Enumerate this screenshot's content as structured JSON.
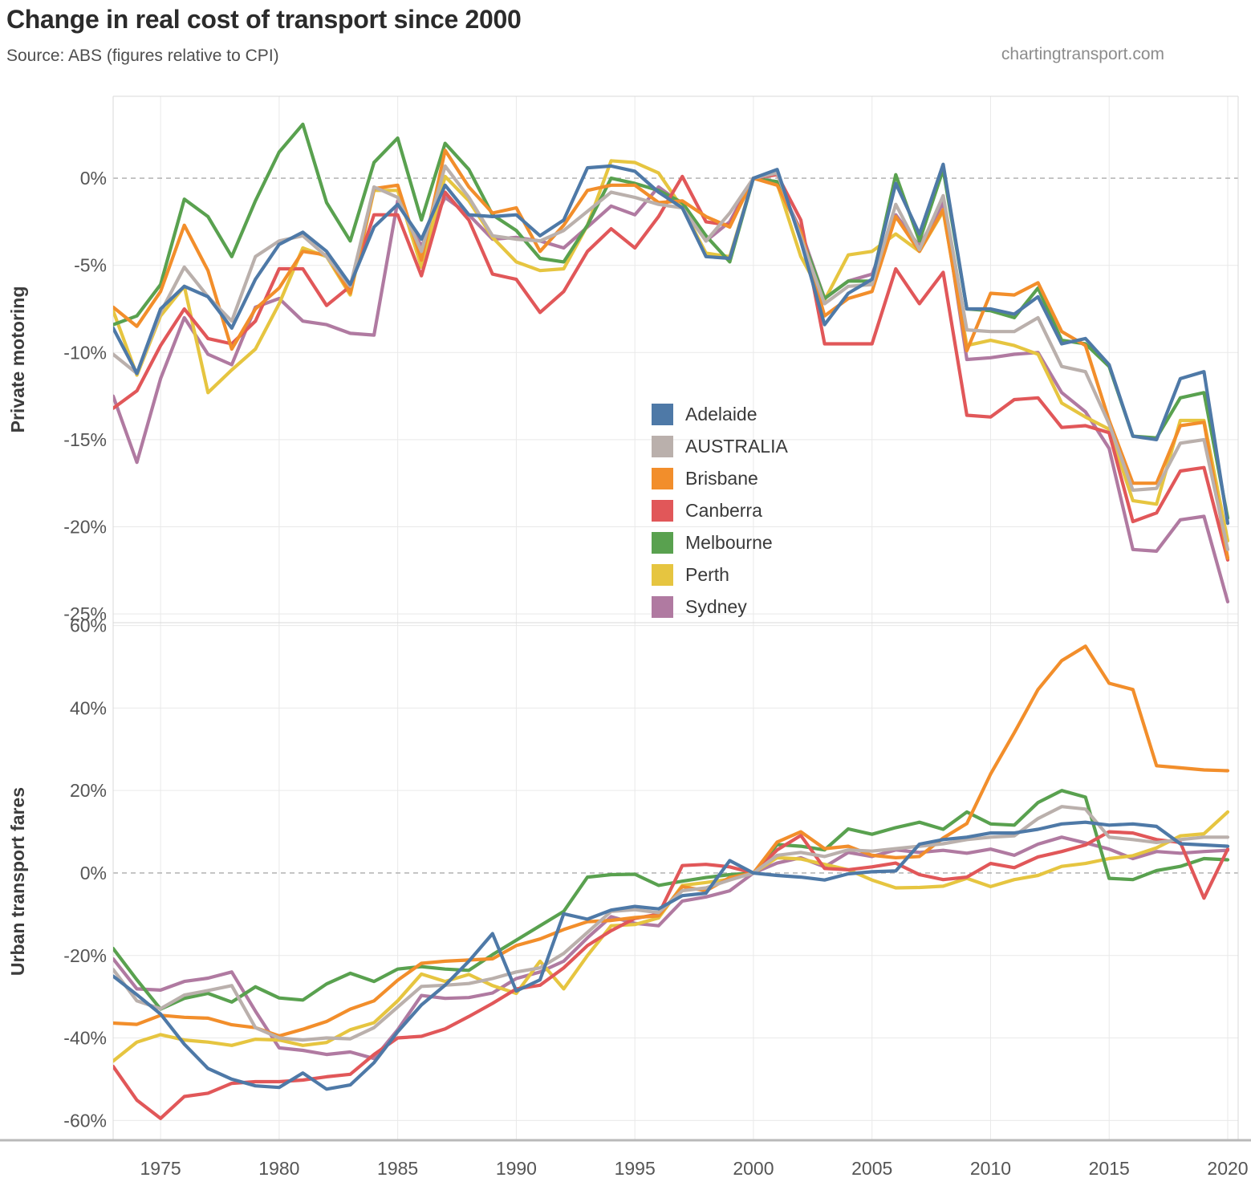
{
  "header": {
    "title": "Change in real cost of transport since 2000",
    "subtitle": "Source: ABS (figures relative to CPI)",
    "watermark": "chartingtransport.com"
  },
  "colors": {
    "adelaide": "#4e79a7",
    "australia": "#bab0ac",
    "brisbane": "#f28e2b",
    "canberra": "#e15759",
    "melbourne": "#59a14f",
    "perth": "#e6c540",
    "sydney": "#b07aa1"
  },
  "legend": {
    "items": [
      {
        "label": "Adelaide",
        "color_key": "adelaide"
      },
      {
        "label": "AUSTRALIA",
        "color_key": "australia"
      },
      {
        "label": "Brisbane",
        "color_key": "brisbane"
      },
      {
        "label": "Canberra",
        "color_key": "canberra"
      },
      {
        "label": "Melbourne",
        "color_key": "melbourne"
      },
      {
        "label": "Perth",
        "color_key": "perth"
      },
      {
        "label": "Sydney",
        "color_key": "sydney"
      }
    ]
  },
  "chart_data": [
    {
      "type": "line",
      "title": "Private motoring",
      "ylabel": "Private motoring",
      "grid": true,
      "legend_position": "inside-right",
      "x_years": [
        1973,
        1974,
        1975,
        1976,
        1977,
        1978,
        1979,
        1980,
        1981,
        1982,
        1983,
        1984,
        1985,
        1986,
        1987,
        1988,
        1989,
        1990,
        1991,
        1992,
        1993,
        1994,
        1995,
        1996,
        1997,
        1998,
        1999,
        2000,
        2001,
        2002,
        2003,
        2004,
        2005,
        2006,
        2007,
        2008,
        2009,
        2010,
        2011,
        2012,
        2013,
        2014,
        2015,
        2016,
        2017,
        2018,
        2019,
        2020
      ],
      "x_ticks": [
        1975,
        1980,
        1985,
        1990,
        1995,
        2000,
        2005,
        2010,
        2015,
        2020
      ],
      "y_ticks": [
        0,
        -5,
        -10,
        -15,
        -20,
        -25
      ],
      "y_tick_labels": [
        "0%",
        "-5%",
        "-10%",
        "-15%",
        "-20%",
        "-25%"
      ],
      "ylim": [
        -25.5,
        4.7
      ],
      "zero_line_dashed": true,
      "series": [
        {
          "name": "Adelaide",
          "color_key": "adelaide",
          "values": [
            -8.6,
            -11.2,
            -7.5,
            -6.2,
            -6.8,
            -8.6,
            -5.8,
            -3.8,
            -3.1,
            -4.2,
            -6.1,
            -2.8,
            -1.5,
            -3.5,
            -0.4,
            -2.1,
            -2.2,
            -2.1,
            -3.3,
            -2.4,
            0.6,
            0.7,
            0.4,
            -0.8,
            -1.7,
            -4.5,
            -4.6,
            0,
            0.5,
            -3.6,
            -8.4,
            -6.6,
            -5.8,
            -0.3,
            -3.2,
            0.8,
            -7.5,
            -7.5,
            -7.8,
            -6.8,
            -9.5,
            -9.2,
            -10.7,
            -14.8,
            -15.0,
            -11.5,
            -11.1,
            -19.8
          ]
        },
        {
          "name": "AUSTRALIA",
          "color_key": "australia",
          "values": [
            -10.1,
            -11.2,
            -7.7,
            -5.1,
            -6.8,
            -8.2,
            -4.5,
            -3.6,
            -3.3,
            -4.5,
            -6.2,
            -0.5,
            -1.1,
            -4.2,
            0.7,
            -1.1,
            -3.3,
            -3.5,
            -3.6,
            -3.0,
            -1.9,
            -0.8,
            -1.1,
            -1.5,
            -1.7,
            -3.6,
            -2.0,
            0,
            0.3,
            -3.4,
            -7.2,
            -6.2,
            -6.1,
            -1.5,
            -4.1,
            -1.0,
            -8.7,
            -8.8,
            -8.8,
            -8.0,
            -10.8,
            -11.1,
            -14.1,
            -17.9,
            -17.8,
            -15.2,
            -15.0,
            -21.3
          ]
        },
        {
          "name": "Brisbane",
          "color_key": "brisbane",
          "values": [
            -7.4,
            -8.5,
            -6.5,
            -2.7,
            -5.3,
            -9.8,
            -7.5,
            -6.3,
            -4.2,
            -4.4,
            -6.6,
            -0.6,
            -0.4,
            -4.7,
            1.6,
            -0.5,
            -2.0,
            -1.7,
            -4.2,
            -2.7,
            -0.7,
            -0.4,
            -0.4,
            -1.4,
            -1.3,
            -2.2,
            -2.8,
            0,
            -0.4,
            -3.1,
            -7.9,
            -6.9,
            -6.5,
            -2.2,
            -4.2,
            -1.8,
            -9.9,
            -6.6,
            -6.7,
            -6.0,
            -8.8,
            -9.6,
            -13.9,
            -17.5,
            -17.5,
            -14.2,
            -14.0,
            -21.8
          ]
        },
        {
          "name": "Canberra",
          "color_key": "canberra",
          "values": [
            -13.2,
            -12.2,
            -9.6,
            -7.5,
            -9.2,
            -9.5,
            -8.2,
            -5.2,
            -5.2,
            -7.3,
            -6.2,
            -2.1,
            -2.1,
            -5.6,
            -0.8,
            -2.4,
            -5.5,
            -5.8,
            -7.7,
            -6.5,
            -4.2,
            -2.9,
            -4.0,
            -2.2,
            0.1,
            -2.5,
            -2.7,
            0,
            0.2,
            -2.4,
            -9.5,
            -9.5,
            -9.5,
            -5.2,
            -7.2,
            -5.4,
            -13.6,
            -13.7,
            -12.7,
            -12.6,
            -14.3,
            -14.2,
            -14.6,
            -19.7,
            -19.2,
            -16.8,
            -16.6,
            -21.9
          ]
        },
        {
          "name": "Melbourne",
          "color_key": "melbourne",
          "values": [
            -8.4,
            -7.9,
            -6.1,
            -1.2,
            -2.2,
            -4.5,
            -1.3,
            1.5,
            3.1,
            -1.4,
            -3.6,
            0.9,
            2.3,
            -2.4,
            2.0,
            0.5,
            -2.1,
            -3.0,
            -4.6,
            -4.8,
            -2.7,
            0.0,
            -0.3,
            -0.7,
            -1.4,
            -3.3,
            -4.8,
            0,
            -0.2,
            -3.2,
            -6.9,
            -5.9,
            -5.9,
            0.2,
            -3.6,
            0.5,
            -7.5,
            -7.6,
            -8.0,
            -6.3,
            -9.3,
            -9.5,
            -10.8,
            -14.8,
            -14.9,
            -12.6,
            -12.3,
            -19.5
          ]
        },
        {
          "name": "Perth",
          "color_key": "perth",
          "values": [
            -7.6,
            -11.3,
            -7.9,
            -6.2,
            -12.3,
            -11.0,
            -9.8,
            -7.2,
            -4.0,
            -4.5,
            -6.7,
            -0.7,
            -0.7,
            -5.1,
            0.1,
            -1.3,
            -3.4,
            -4.8,
            -5.3,
            -5.2,
            -2.7,
            1.0,
            0.9,
            0.3,
            -1.7,
            -4.3,
            -4.5,
            0,
            -0.3,
            -4.5,
            -7.0,
            -4.4,
            -4.2,
            -3.2,
            -4.2,
            -1.9,
            -9.6,
            -9.3,
            -9.6,
            -10.1,
            -12.9,
            -13.7,
            -14.4,
            -18.5,
            -18.7,
            -13.9,
            -13.9,
            -20.8
          ]
        },
        {
          "name": "Sydney",
          "color_key": "sydney",
          "values": [
            -12.5,
            -16.3,
            -11.5,
            -8.0,
            -10.1,
            -10.7,
            -7.4,
            -6.9,
            -8.2,
            -8.4,
            -8.9,
            -9.0,
            -1.3,
            -3.9,
            -1.1,
            -2.1,
            -3.5,
            -3.4,
            -3.6,
            -4.0,
            -2.8,
            -1.6,
            -2.1,
            -0.5,
            -1.5,
            -3.6,
            -2.5,
            0,
            -0.2,
            -3.0,
            -6.9,
            -5.9,
            -5.5,
            -2.1,
            -3.9,
            -1.4,
            -10.4,
            -10.3,
            -10.1,
            -10.0,
            -12.3,
            -13.4,
            -15.5,
            -21.3,
            -21.4,
            -19.6,
            -19.4,
            -24.3
          ]
        }
      ]
    },
    {
      "type": "line",
      "title": "Urban transport fares",
      "ylabel": "Urban transport fares",
      "grid": true,
      "x_years": [
        1973,
        1974,
        1975,
        1976,
        1977,
        1978,
        1979,
        1980,
        1981,
        1982,
        1983,
        1984,
        1985,
        1986,
        1987,
        1988,
        1989,
        1990,
        1991,
        1992,
        1993,
        1994,
        1995,
        1996,
        1997,
        1998,
        1999,
        2000,
        2001,
        2002,
        2003,
        2004,
        2005,
        2006,
        2007,
        2008,
        2009,
        2010,
        2011,
        2012,
        2013,
        2014,
        2015,
        2016,
        2017,
        2018,
        2019,
        2020
      ],
      "x_ticks": [
        1975,
        1980,
        1985,
        1990,
        1995,
        2000,
        2005,
        2010,
        2015,
        2020
      ],
      "y_ticks": [
        60,
        40,
        20,
        0,
        -20,
        -40,
        -60
      ],
      "y_tick_labels": [
        "60%",
        "40%",
        "20%",
        "0%",
        "-20%",
        "-40%",
        "-60%"
      ],
      "ylim": [
        -64.8,
        60.7
      ],
      "zero_line_dashed": true,
      "series": [
        {
          "name": "Adelaide",
          "color_key": "adelaide",
          "values": [
            -25.0,
            -29.5,
            -34.2,
            -41.5,
            -47.4,
            -50.0,
            -51.6,
            -52.0,
            -48.5,
            -52.4,
            -51.4,
            -46.0,
            -38.5,
            -32.0,
            -27.2,
            -21.4,
            -14.7,
            -28.6,
            -25.9,
            -9.9,
            -11.2,
            -9.0,
            -8.1,
            -8.7,
            -5.5,
            -4.9,
            3.0,
            0,
            -0.6,
            -1.0,
            -1.7,
            -0.2,
            0.3,
            0.5,
            7.0,
            8.1,
            8.7,
            9.7,
            9.7,
            10.6,
            11.9,
            12.3,
            11.6,
            11.9,
            11.3,
            7.1,
            6.8,
            6.5
          ]
        },
        {
          "name": "AUSTRALIA",
          "color_key": "australia",
          "values": [
            -23.4,
            -31.0,
            -32.9,
            -29.6,
            -28.5,
            -27.3,
            -37.5,
            -40.0,
            -40.5,
            -40.0,
            -40.2,
            -37.5,
            -32.5,
            -27.5,
            -27.2,
            -26.8,
            -25.6,
            -24.0,
            -23.0,
            -19.5,
            -14.4,
            -9.3,
            -8.9,
            -9.6,
            -4.3,
            -3.6,
            -1.7,
            0,
            4.3,
            5.0,
            4.0,
            5.6,
            5.3,
            5.9,
            6.5,
            7.1,
            8.1,
            8.7,
            9.0,
            13.2,
            16.1,
            15.5,
            8.7,
            8.1,
            7.4,
            8.1,
            8.7,
            8.7
          ]
        },
        {
          "name": "Brisbane",
          "color_key": "brisbane",
          "values": [
            -36.4,
            -36.7,
            -34.5,
            -35.0,
            -35.2,
            -36.8,
            -37.5,
            -39.5,
            -37.9,
            -36.0,
            -33.0,
            -31.0,
            -26.0,
            -21.9,
            -21.4,
            -21.1,
            -20.8,
            -17.6,
            -16.0,
            -13.7,
            -11.8,
            -11.5,
            -10.8,
            -10.4,
            -3.3,
            -4.3,
            -1.1,
            0,
            7.5,
            10.0,
            5.9,
            6.5,
            4.3,
            3.7,
            4.0,
            8.5,
            12.0,
            24.0,
            34.0,
            44.5,
            51.5,
            55.0,
            46.0,
            44.5,
            26.0,
            25.5,
            25.0,
            24.8
          ]
        },
        {
          "name": "Canberra",
          "color_key": "canberra",
          "values": [
            -46.9,
            -55.1,
            -59.5,
            -54.2,
            -53.4,
            -51.0,
            -50.6,
            -50.6,
            -50.2,
            -49.4,
            -48.8,
            -44.0,
            -40.0,
            -39.6,
            -37.8,
            -34.8,
            -31.6,
            -28.1,
            -27.2,
            -23.0,
            -17.6,
            -14.0,
            -11.0,
            -10.0,
            1.8,
            2.1,
            1.5,
            0,
            5.6,
            9.1,
            1.1,
            0.8,
            1.5,
            2.4,
            -0.4,
            -1.6,
            -1.0,
            2.3,
            1.3,
            3.9,
            5.2,
            6.8,
            10.0,
            9.7,
            8.1,
            7.4,
            -6.1,
            5.8
          ]
        },
        {
          "name": "Melbourne",
          "color_key": "melbourne",
          "values": [
            -18.3,
            -25.9,
            -33.0,
            -30.4,
            -29.2,
            -31.3,
            -27.6,
            -30.3,
            -30.8,
            -26.9,
            -24.3,
            -26.3,
            -23.3,
            -22.7,
            -23.3,
            -23.6,
            -19.8,
            -16.3,
            -12.8,
            -9.3,
            -1.0,
            -0.4,
            -0.3,
            -3.0,
            -2.0,
            -1.1,
            -0.4,
            0,
            6.9,
            6.5,
            5.6,
            10.7,
            9.4,
            11.0,
            12.3,
            10.6,
            14.8,
            11.9,
            11.6,
            17.1,
            20.0,
            18.4,
            -1.3,
            -1.6,
            0.6,
            1.6,
            3.5,
            3.2
          ]
        },
        {
          "name": "Perth",
          "color_key": "perth",
          "values": [
            -45.6,
            -41.0,
            -39.2,
            -40.5,
            -41.0,
            -41.8,
            -40.3,
            -40.5,
            -41.8,
            -41.1,
            -38.0,
            -36.3,
            -31.0,
            -24.5,
            -26.3,
            -24.6,
            -27.3,
            -29.2,
            -21.4,
            -28.1,
            -20.0,
            -12.8,
            -12.5,
            -10.9,
            -3.0,
            -2.3,
            -1.5,
            0,
            3.7,
            3.4,
            2.1,
            0.8,
            -1.7,
            -3.6,
            -3.5,
            -3.2,
            -1.3,
            -3.3,
            -1.6,
            -0.6,
            1.6,
            2.3,
            3.5,
            4.2,
            6.1,
            9.0,
            9.5,
            14.8
          ]
        },
        {
          "name": "Sydney",
          "color_key": "sydney",
          "values": [
            -20.8,
            -28.1,
            -28.4,
            -26.3,
            -25.5,
            -24.0,
            -33.5,
            -42.4,
            -43.0,
            -44.0,
            -43.4,
            -45.0,
            -38.0,
            -29.7,
            -30.4,
            -30.2,
            -29.1,
            -25.6,
            -24.0,
            -21.4,
            -15.7,
            -10.6,
            -12.2,
            -12.8,
            -6.8,
            -5.8,
            -4.3,
            0,
            2.4,
            3.7,
            1.5,
            5.0,
            4.0,
            5.6,
            5.0,
            5.5,
            4.8,
            5.8,
            4.3,
            7.0,
            8.7,
            7.3,
            5.8,
            3.5,
            5.2,
            4.8,
            5.2,
            5.5
          ]
        }
      ]
    }
  ]
}
